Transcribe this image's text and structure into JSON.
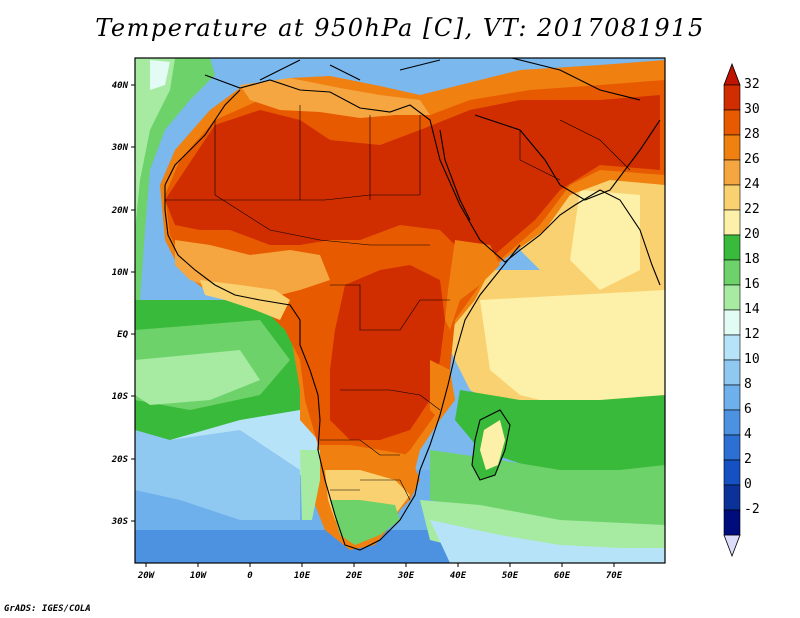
{
  "title": "Temperature at 950hPa [C], VT: 2017081915",
  "footer": "GrADS: IGES/COLA",
  "map": {
    "lon_range": [
      -23,
      80
    ],
    "lat_range": [
      -36,
      45
    ],
    "x_ticks": [
      "20W",
      "10W",
      "0",
      "10E",
      "20E",
      "30E",
      "40E",
      "50E",
      "60E",
      "70E"
    ],
    "y_ticks": [
      "40N",
      "30N",
      "20N",
      "10N",
      "EQ",
      "10S",
      "20S",
      "30S"
    ]
  },
  "colorbar": {
    "labels": [
      "32",
      "30",
      "28",
      "26",
      "24",
      "22",
      "20",
      "18",
      "16",
      "14",
      "12",
      "10",
      "8",
      "6",
      "4",
      "2",
      "0",
      "-2"
    ],
    "colors": [
      "#d02d00",
      "#e85a00",
      "#f08010",
      "#f5a640",
      "#fad170",
      "#fdf0a8",
      "#3aba3a",
      "#6dd26a",
      "#a7eba2",
      "#e3fbf5",
      "#b7e3f8",
      "#8fc9f2",
      "#6eb0ec",
      "#4c92e0",
      "#2b70d2",
      "#1551c2",
      "#0b3299",
      "#000c7c"
    ],
    "top_arrow_color": "#c01400",
    "bottom_arrow_color": "#ddddfb"
  }
}
